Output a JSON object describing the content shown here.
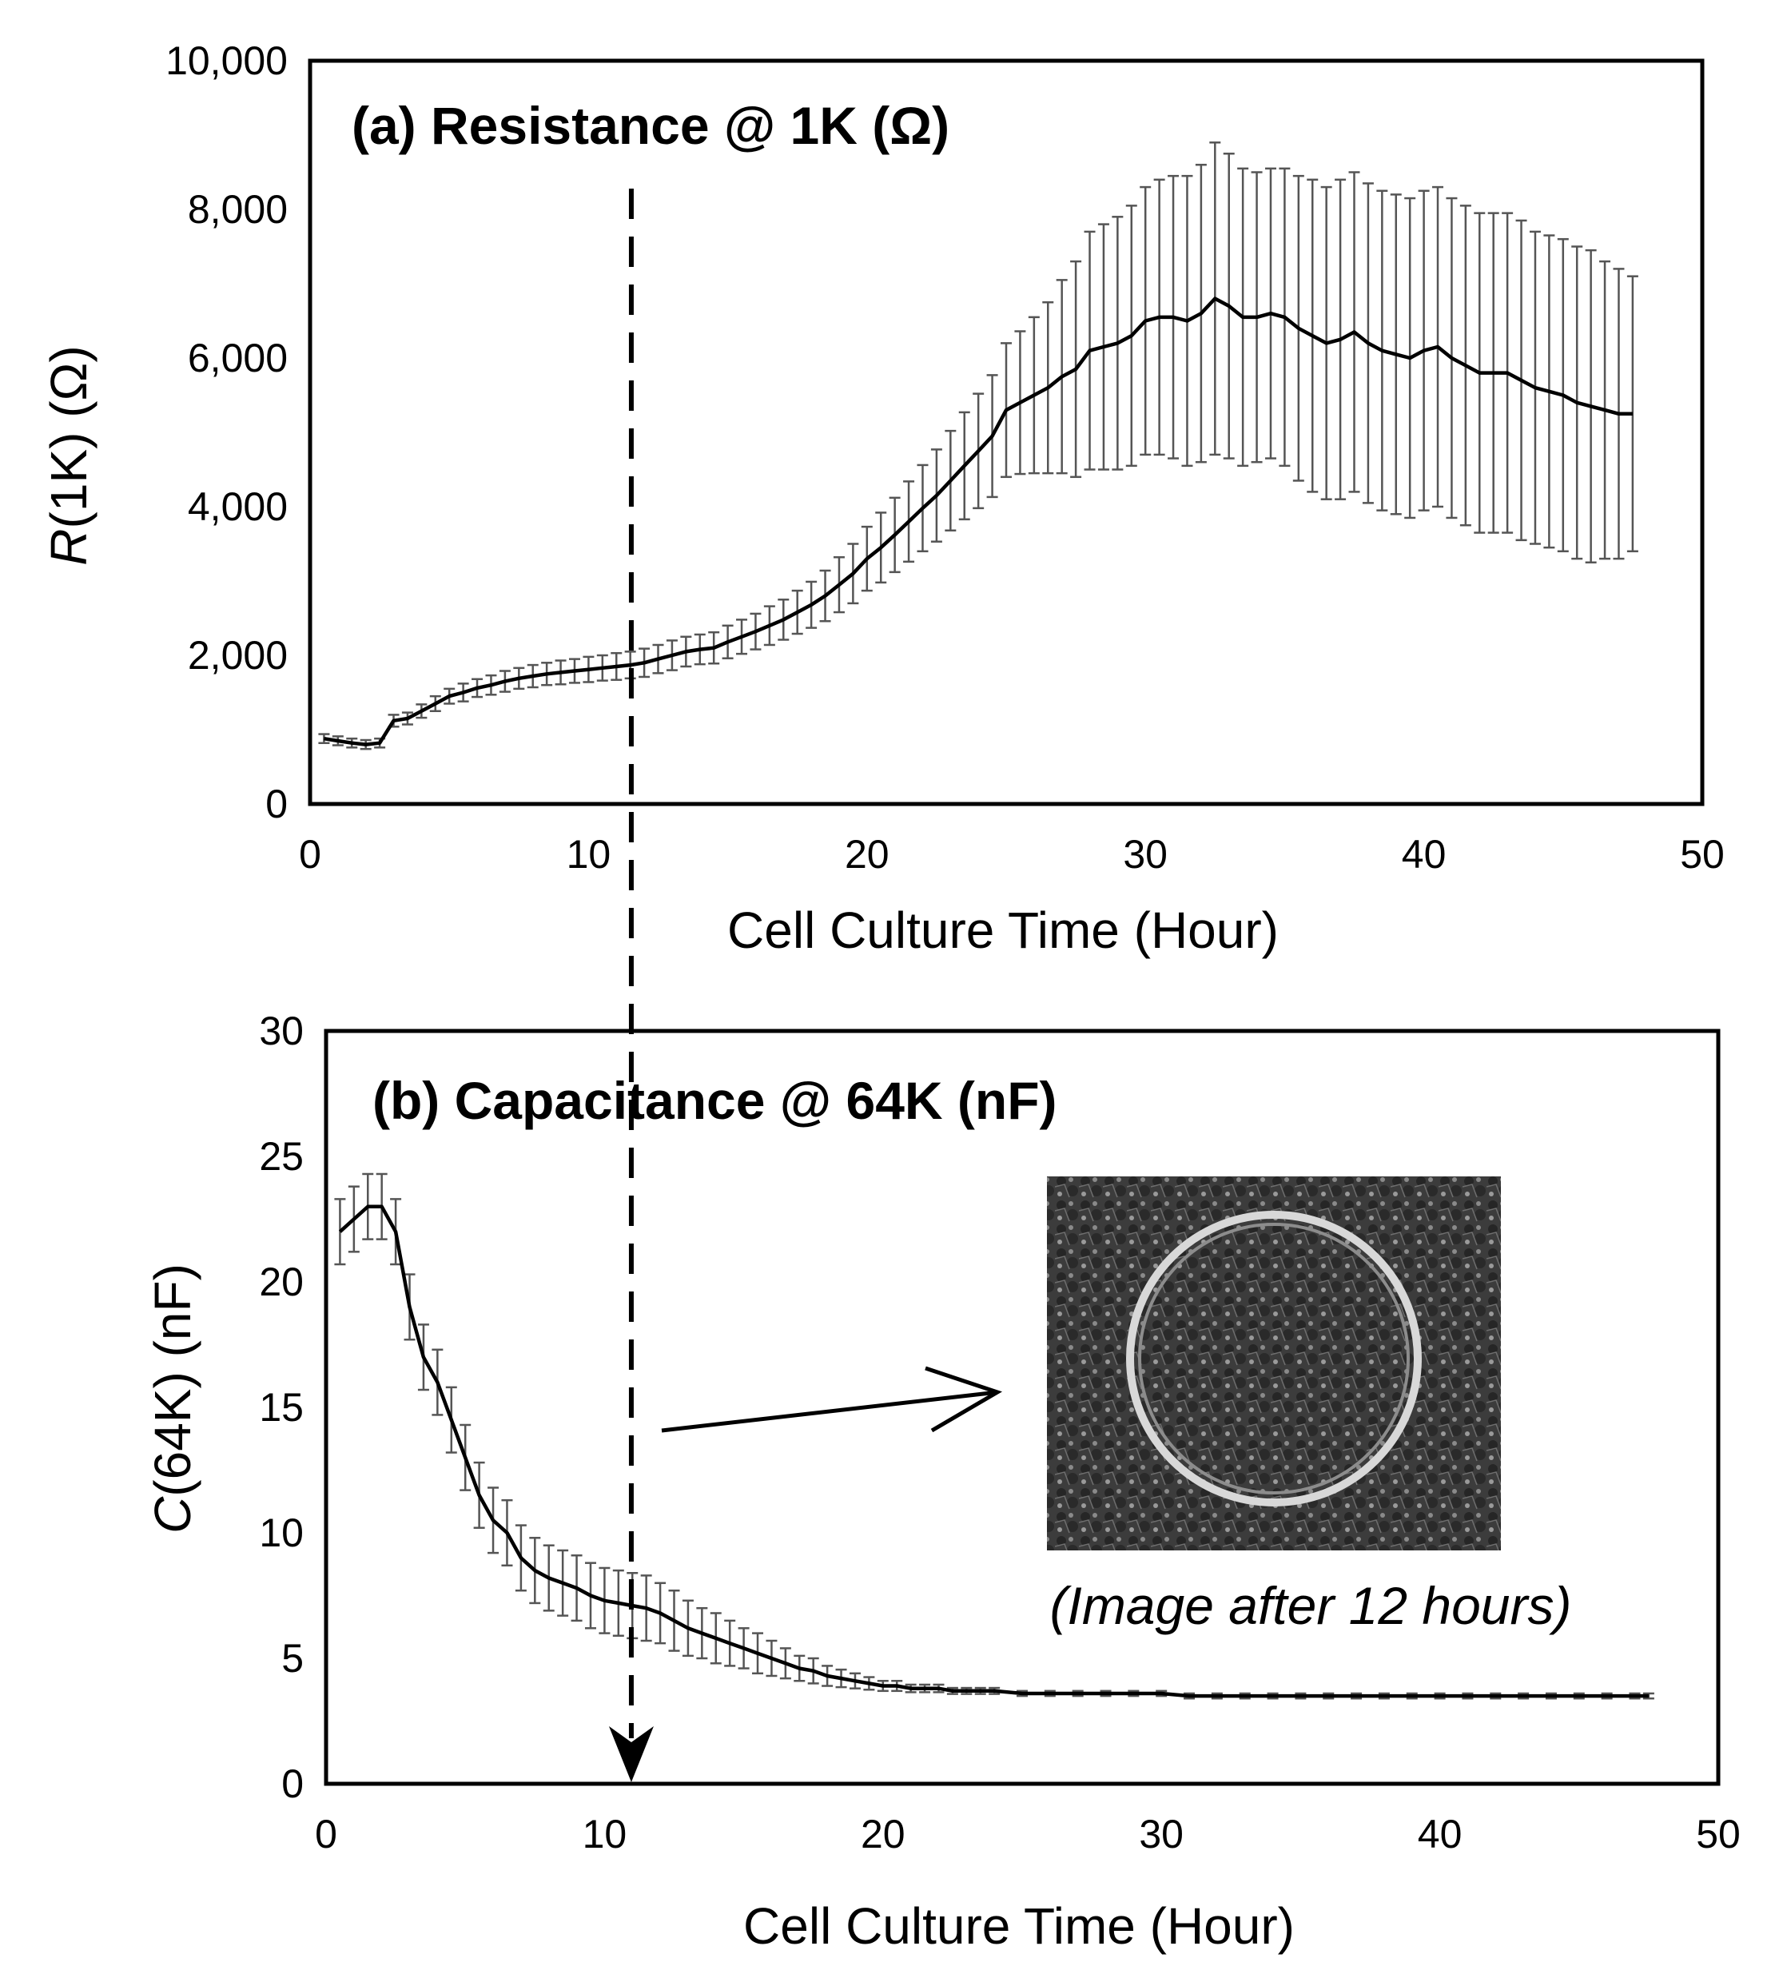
{
  "chart_data": [
    {
      "type": "line",
      "title": "(a) Resistance @ 1K (Ω)",
      "ylabel_var": "R",
      "ylabel_rest": "(1K) (Ω)",
      "xlabel": "Cell Culture Time (Hour)",
      "xlim": [
        0,
        50
      ],
      "ylim": [
        0,
        10000
      ],
      "xticks": [
        "0",
        "10",
        "20",
        "30",
        "40",
        "50"
      ],
      "yticks": [
        "0",
        "2,000",
        "4,000",
        "6,000",
        "8,000",
        "10,000"
      ],
      "grid": false,
      "error_bars": true,
      "series": [
        {
          "x": [
            0.5,
            1.0,
            1.5,
            2.0,
            2.5,
            3.0,
            3.5,
            4.0,
            4.5,
            5.0,
            5.5,
            6.0,
            6.5,
            7.0,
            7.5,
            8.0,
            8.5,
            9.0,
            9.5,
            10.0,
            10.5,
            11.0,
            11.5,
            12.0,
            12.5,
            13.0,
            13.5,
            14.0,
            14.5,
            15.0,
            15.5,
            16.0,
            16.5,
            17.0,
            17.5,
            18.0,
            18.5,
            19.0,
            19.5,
            20.0,
            20.5,
            21.0,
            21.5,
            22.0,
            22.5,
            23.0,
            23.5,
            24.0,
            24.5,
            25.0,
            25.5,
            26.0,
            26.5,
            27.0,
            27.5,
            28.0,
            28.5,
            29.0,
            29.5,
            30.0,
            30.5,
            31.0,
            31.5,
            32.0,
            32.5,
            33.0,
            33.5,
            34.0,
            34.5,
            35.0,
            35.5,
            36.0,
            36.5,
            37.0,
            37.5,
            38.0,
            38.5,
            39.0,
            39.5,
            40.0,
            40.5,
            41.0,
            41.5,
            42.0,
            42.5,
            43.0,
            43.5,
            44.0,
            44.5,
            45.0,
            45.5,
            46.0,
            46.5,
            47.0,
            47.5
          ],
          "y": [
            880,
            850,
            820,
            800,
            820,
            1120,
            1150,
            1250,
            1350,
            1450,
            1500,
            1560,
            1600,
            1650,
            1690,
            1720,
            1750,
            1770,
            1790,
            1810,
            1830,
            1850,
            1870,
            1900,
            1950,
            2000,
            2050,
            2080,
            2100,
            2180,
            2250,
            2320,
            2400,
            2480,
            2580,
            2680,
            2800,
            2950,
            3100,
            3300,
            3450,
            3620,
            3800,
            3980,
            4150,
            4350,
            4550,
            4750,
            4950,
            5300,
            5400,
            5500,
            5600,
            5750,
            5850,
            6100,
            6150,
            6200,
            6300,
            6500,
            6550,
            6550,
            6500,
            6600,
            6800,
            6700,
            6550,
            6550,
            6600,
            6550,
            6400,
            6300,
            6200,
            6250,
            6350,
            6200,
            6100,
            6050,
            6000,
            6100,
            6150,
            6000,
            5900,
            5800,
            5800,
            5800,
            5700,
            5600,
            5550,
            5500,
            5400,
            5350,
            5300,
            5250,
            5250
          ],
          "err": [
            60,
            60,
            60,
            60,
            60,
            80,
            80,
            90,
            100,
            100,
            120,
            120,
            130,
            140,
            140,
            150,
            150,
            160,
            160,
            170,
            170,
            180,
            180,
            190,
            190,
            200,
            200,
            200,
            210,
            220,
            230,
            240,
            260,
            270,
            290,
            310,
            340,
            370,
            400,
            430,
            470,
            500,
            540,
            580,
            620,
            670,
            720,
            770,
            820,
            900,
            960,
            1050,
            1150,
            1300,
            1450,
            1600,
            1650,
            1700,
            1750,
            1800,
            1850,
            1900,
            1950,
            2000,
            2100,
            2050,
            2000,
            1950,
            1950,
            2000,
            2050,
            2100,
            2100,
            2150,
            2150,
            2150,
            2150,
            2150,
            2150,
            2150,
            2150,
            2150,
            2150,
            2150,
            2150,
            2150,
            2150,
            2100,
            2100,
            2100,
            2100,
            2100,
            2000,
            1950,
            1850
          ]
        }
      ],
      "marker_x": 11.5
    },
    {
      "type": "line",
      "title": "(b) Capacitance @ 64K (nF)",
      "ylabel_var": "C",
      "ylabel_rest": "(64K) (nF)",
      "xlabel": "Cell Culture Time (Hour)",
      "xlim": [
        0,
        50
      ],
      "ylim": [
        0,
        30
      ],
      "xticks": [
        "0",
        "10",
        "20",
        "30",
        "40",
        "50"
      ],
      "yticks": [
        "0",
        "5",
        "10",
        "15",
        "20",
        "25",
        "30"
      ],
      "grid": false,
      "error_bars": true,
      "series": [
        {
          "x": [
            0.5,
            1.0,
            1.5,
            2.0,
            2.5,
            3.0,
            3.5,
            4.0,
            4.5,
            5.0,
            5.5,
            6.0,
            6.5,
            7.0,
            7.5,
            8.0,
            8.5,
            9.0,
            9.5,
            10.0,
            10.5,
            11.0,
            11.5,
            12.0,
            12.5,
            13.0,
            13.5,
            14.0,
            14.5,
            15.0,
            15.5,
            16.0,
            16.5,
            17.0,
            17.5,
            18.0,
            18.5,
            19.0,
            19.5,
            20.0,
            20.5,
            21.0,
            21.5,
            22.0,
            22.5,
            23.0,
            23.5,
            24.0,
            25.0,
            26.0,
            27.0,
            28.0,
            29.0,
            30.0,
            31.0,
            32.0,
            33.0,
            34.0,
            35.0,
            36.0,
            37.0,
            38.0,
            39.0,
            40.0,
            41.0,
            42.0,
            43.0,
            44.0,
            45.0,
            46.0,
            47.0,
            47.5
          ],
          "y": [
            22.0,
            22.5,
            23.0,
            23.0,
            22.0,
            19.0,
            17.0,
            16.0,
            14.5,
            13.0,
            11.5,
            10.5,
            10.0,
            9.0,
            8.5,
            8.2,
            8.0,
            7.8,
            7.5,
            7.3,
            7.2,
            7.1,
            7.0,
            6.8,
            6.5,
            6.2,
            6.0,
            5.8,
            5.6,
            5.4,
            5.2,
            5.0,
            4.8,
            4.6,
            4.5,
            4.3,
            4.2,
            4.1,
            4.0,
            3.9,
            3.9,
            3.8,
            3.8,
            3.8,
            3.7,
            3.7,
            3.7,
            3.7,
            3.6,
            3.6,
            3.6,
            3.6,
            3.6,
            3.6,
            3.5,
            3.5,
            3.5,
            3.5,
            3.5,
            3.5,
            3.5,
            3.5,
            3.5,
            3.5,
            3.5,
            3.5,
            3.5,
            3.5,
            3.5,
            3.5,
            3.5,
            3.5
          ],
          "err": [
            1.3,
            1.3,
            1.3,
            1.3,
            1.3,
            1.3,
            1.3,
            1.3,
            1.3,
            1.3,
            1.3,
            1.3,
            1.3,
            1.3,
            1.3,
            1.3,
            1.3,
            1.3,
            1.3,
            1.3,
            1.3,
            1.3,
            1.3,
            1.2,
            1.2,
            1.1,
            1.0,
            1.0,
            0.9,
            0.8,
            0.8,
            0.7,
            0.6,
            0.5,
            0.5,
            0.4,
            0.35,
            0.3,
            0.25,
            0.2,
            0.2,
            0.15,
            0.15,
            0.15,
            0.12,
            0.12,
            0.12,
            0.12,
            0.1,
            0.1,
            0.1,
            0.1,
            0.1,
            0.1,
            0.1,
            0.1,
            0.1,
            0.1,
            0.1,
            0.1,
            0.1,
            0.1,
            0.1,
            0.1,
            0.1,
            0.1,
            0.1,
            0.1,
            0.1,
            0.1,
            0.1,
            0.1
          ]
        }
      ],
      "marker_x": 11.0,
      "annotation": "(Image after 12 hours)"
    }
  ]
}
